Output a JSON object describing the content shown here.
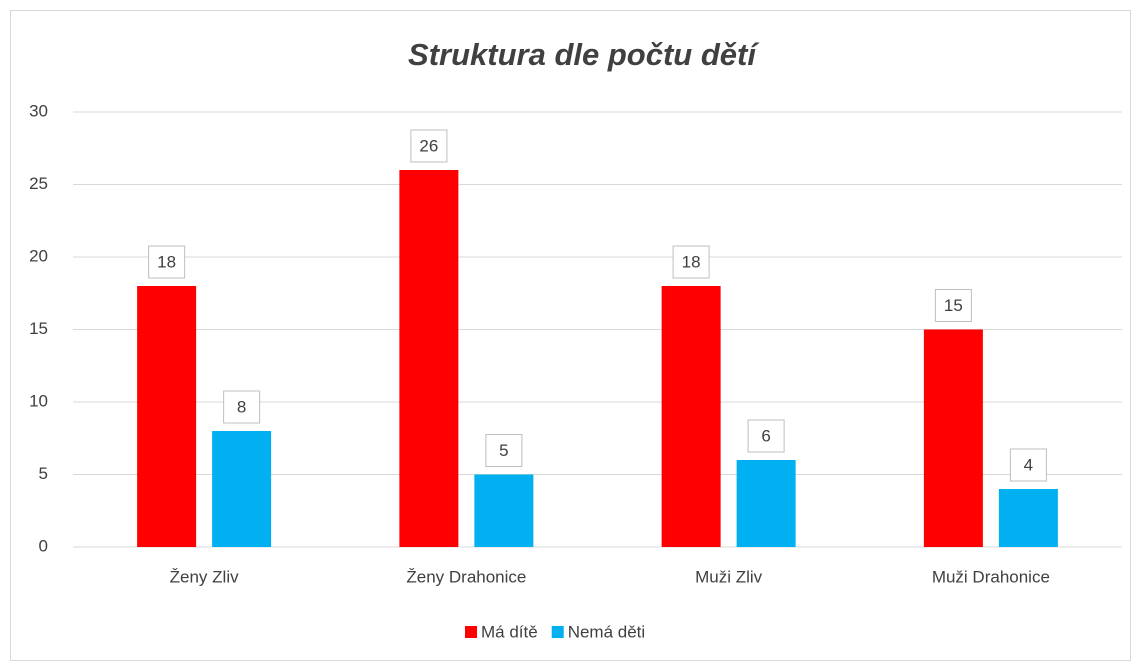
{
  "chart_data": {
    "type": "bar",
    "title": "Struktura dle počtu dětí",
    "categories": [
      "Ženy Zliv",
      "Ženy Drahonice",
      "Muži Zliv",
      "Muži Drahonice"
    ],
    "series": [
      {
        "name": "Má dítě",
        "color": "#ff0000",
        "values": [
          18,
          26,
          18,
          15
        ]
      },
      {
        "name": "Nemá děti",
        "color": "#00b0f0",
        "values": [
          8,
          5,
          6,
          4
        ]
      }
    ],
    "ylim": [
      0,
      30
    ],
    "yticks": [
      0,
      5,
      10,
      15,
      20,
      25,
      30
    ],
    "grid": true,
    "legend": "bottom"
  }
}
